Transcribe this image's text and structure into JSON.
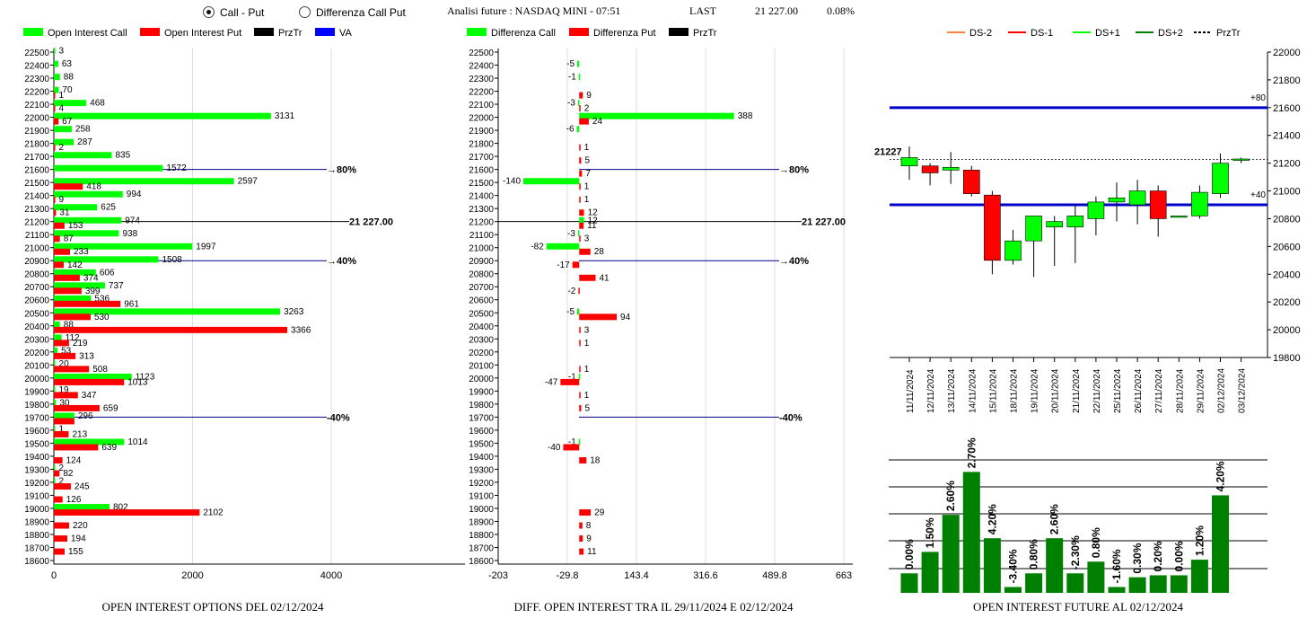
{
  "header": {
    "radio_call_put": "Call - Put",
    "radio_diff": "Differenza Call Put",
    "title": "Analisi future : NASDAQ MINI - 07:51",
    "last_label": "LAST",
    "last_value": "21 227.00",
    "change": "0.08%"
  },
  "colors": {
    "call": "#00ff00",
    "put": "#ff0000",
    "prztr": "#000000",
    "va": "#0000ff",
    "dark_green": "#008000"
  },
  "chart_data": [
    {
      "type": "bar",
      "title": "OPEN INTEREST OPTIONS DEL 02/12/2024",
      "legend": [
        "Open Interest Call",
        "Open Interest Put",
        "PrzTr",
        "VA"
      ],
      "xlim": [
        0,
        5800
      ],
      "xticks": [
        "0",
        "2000",
        "4000"
      ],
      "categories": [
        "22500",
        "22400",
        "22300",
        "22200",
        "22100",
        "22000",
        "21900",
        "21800",
        "21700",
        "21600",
        "21500",
        "21400",
        "21300",
        "21200",
        "21100",
        "21000",
        "20900",
        "20800",
        "20700",
        "20600",
        "20500",
        "20400",
        "20300",
        "20200",
        "20100",
        "20000",
        "19900",
        "19800",
        "19700",
        "19600",
        "19500",
        "19400",
        "19300",
        "19200",
        "19100",
        "19000",
        "18900",
        "18800",
        "18700",
        "18600"
      ],
      "series": [
        {
          "name": "Open Interest Call",
          "values": [
            3,
            63,
            88,
            70,
            468,
            3131,
            258,
            287,
            835,
            1572,
            2597,
            994,
            625,
            974,
            938,
            1997,
            1508,
            606,
            737,
            536,
            3263,
            88,
            112,
            53,
            20,
            1123,
            19,
            30,
            296,
            1,
            1014,
            null,
            2,
            2,
            null,
            802,
            null,
            null,
            null,
            null
          ],
          "labels": [
            "3",
            "63",
            "88",
            "70",
            "468",
            "3131",
            "258",
            "287",
            "835",
            "1572",
            "2597",
            "994",
            "625",
            "974",
            "938",
            "1997",
            "1508",
            "606",
            "737",
            "536",
            "3263",
            "88",
            "112",
            "53",
            "20",
            "1123",
            "19",
            "30",
            "296",
            "1",
            "1014",
            "",
            "2",
            "2",
            "",
            "802",
            "",
            "",
            "",
            ""
          ]
        },
        {
          "name": "Open Interest Put",
          "values": [
            null,
            null,
            null,
            1,
            4,
            67,
            null,
            2,
            null,
            null,
            418,
            9,
            31,
            153,
            87,
            233,
            142,
            374,
            399,
            961,
            530,
            3366,
            219,
            313,
            508,
            1013,
            347,
            659,
            296,
            213,
            639,
            124,
            82,
            245,
            126,
            2102,
            220,
            194,
            155,
            null
          ],
          "labels": [
            "",
            "",
            "",
            "1",
            "4",
            "67",
            "",
            "2",
            "",
            "",
            "418",
            "9",
            "31",
            "153",
            "87",
            "233",
            "142",
            "374",
            "399",
            "961",
            "530",
            "3366",
            "219",
            "313",
            "508",
            "1013",
            "347",
            "659",
            "",
            "213",
            "639",
            "124",
            "82",
            "245",
            "126",
            "2102",
            "220",
            "194",
            "155",
            ""
          ]
        }
      ],
      "refs": [
        {
          "strike": "21600",
          "label": "80%",
          "kind": "va"
        },
        {
          "strike": "21200",
          "label": "21 227.00",
          "kind": "prztr"
        },
        {
          "strike": "20900",
          "label": "40%",
          "kind": "va"
        },
        {
          "strike": "19700",
          "label": "-40%",
          "kind": "va"
        }
      ]
    },
    {
      "type": "bar",
      "title": "DIFF. OPEN INTEREST TRA IL 29/11/2024 E 02/12/2024",
      "legend": [
        "Differenza Call",
        "Differenza Put",
        "PrzTr"
      ],
      "xlim": [
        -203,
        663
      ],
      "xticks": [
        "-203",
        "-29.8",
        "143.4",
        "316.6",
        "489.8",
        "663"
      ],
      "categories": [
        "22500",
        "22400",
        "22300",
        "22200",
        "22100",
        "22000",
        "21900",
        "21800",
        "21700",
        "21600",
        "21500",
        "21400",
        "21300",
        "21200",
        "21100",
        "21000",
        "20900",
        "20800",
        "20700",
        "20600",
        "20500",
        "20400",
        "20300",
        "20200",
        "20100",
        "20000",
        "19900",
        "19800",
        "19700",
        "19600",
        "19500",
        "19400",
        "19300",
        "19200",
        "19100",
        "19000",
        "18900",
        "18800",
        "18700",
        "18600"
      ],
      "series": [
        {
          "name": "Differenza Call",
          "values": [
            null,
            -5,
            -1,
            null,
            -3,
            388,
            -6,
            null,
            null,
            null,
            -140,
            null,
            null,
            12,
            -3,
            -82,
            null,
            null,
            null,
            null,
            -5,
            null,
            null,
            null,
            null,
            -1,
            null,
            null,
            null,
            null,
            -1,
            null,
            null,
            null,
            null,
            null,
            null,
            null,
            null,
            null
          ],
          "labels": [
            "",
            "-5",
            "-1",
            "",
            "-3",
            "388",
            "-6",
            "",
            "",
            "",
            "-140",
            "",
            "",
            "12",
            "-3",
            "-82",
            "",
            "",
            "",
            "",
            "-5",
            "",
            "",
            "",
            "",
            "-1",
            "",
            "",
            "",
            "",
            "-1",
            "",
            "",
            "",
            "",
            "",
            "",
            "",
            "",
            ""
          ]
        },
        {
          "name": "Differenza Put",
          "values": [
            null,
            null,
            null,
            9,
            2,
            24,
            null,
            1,
            5,
            7,
            1,
            1,
            12,
            11,
            3,
            28,
            -17,
            41,
            -2,
            null,
            94,
            3,
            1,
            null,
            1,
            -47,
            1,
            5,
            null,
            null,
            -40,
            18,
            null,
            null,
            null,
            29,
            8,
            9,
            11,
            null
          ],
          "labels": [
            "",
            "",
            "",
            "9",
            "2",
            "24",
            "",
            "1",
            "5",
            "7",
            "1",
            "1",
            "12",
            "11",
            "3",
            "28",
            "-17",
            "41",
            "-2",
            "",
            "94",
            "3",
            "1",
            "",
            "1",
            "-47",
            "1",
            "5",
            "",
            "",
            "-40",
            "18",
            "",
            "",
            "",
            "29",
            "8",
            "9",
            "11",
            ""
          ]
        }
      ],
      "refs": [
        {
          "strike": "21600",
          "label": "80%",
          "kind": "va"
        },
        {
          "strike": "21200",
          "label": "21 227.00",
          "kind": "prztr"
        },
        {
          "strike": "20900",
          "label": "40%",
          "kind": "va"
        },
        {
          "strike": "19700",
          "label": "-40%",
          "kind": "va"
        }
      ]
    },
    {
      "type": "candlestick",
      "legend": [
        "DS-2",
        "DS-1",
        "DS+1",
        "DS+2",
        "PrzTr"
      ],
      "legend_colors": [
        "#ff8040",
        "#ff0000",
        "#00ff00",
        "#008000",
        "#000000"
      ],
      "ylim": [
        19800,
        22000
      ],
      "yticks": [
        "22000",
        "21800",
        "21600",
        "21400",
        "21200",
        "21000",
        "20800",
        "20600",
        "20400",
        "20200",
        "20000",
        "19800"
      ],
      "dates": [
        "11/11/2024",
        "12/11/2024",
        "13/11/2024",
        "14/11/2024",
        "15/11/2024",
        "18/11/2024",
        "19/11/2024",
        "20/11/2024",
        "21/11/2024",
        "22/11/2024",
        "25/11/2024",
        "26/11/2024",
        "27/11/2024",
        "28/11/2024",
        "29/11/2024",
        "02/12/2024",
        "03/12/2024"
      ],
      "open": [
        21180,
        21180,
        21150,
        21150,
        20970,
        20500,
        20640,
        20740,
        20740,
        20800,
        20920,
        20900,
        21000,
        20810,
        20820,
        20980,
        21220
      ],
      "high": [
        21320,
        21200,
        21280,
        21180,
        21000,
        20720,
        20820,
        20820,
        20900,
        20960,
        21060,
        21080,
        21040,
        20820,
        21040,
        21270,
        21240
      ],
      "low": [
        21080,
        21040,
        21050,
        20960,
        20400,
        20470,
        20380,
        20460,
        20480,
        20680,
        20780,
        20760,
        20670,
        20810,
        20800,
        20950,
        21200
      ],
      "close": [
        21240,
        21130,
        21170,
        20980,
        20500,
        20640,
        20820,
        20780,
        20820,
        20920,
        20950,
        21000,
        20800,
        20820,
        20990,
        21200,
        21230
      ],
      "ref_lines": [
        {
          "value": 21600,
          "label": "+80",
          "color": "#0000cc"
        },
        {
          "value": 20900,
          "label": "+40",
          "color": "#0000cc"
        },
        {
          "value": 21227,
          "label": "21227",
          "style": "dashed"
        }
      ]
    },
    {
      "type": "bar",
      "title": "OPEN INTEREST FUTURE AL 02/12/2024",
      "values": [
        1.0,
        2.1,
        4.0,
        6.2,
        2.8,
        0.3,
        1.0,
        2.8,
        1.0,
        1.6,
        0.3,
        0.8,
        0.9,
        0.9,
        1.7,
        5.0
      ],
      "labels": [
        "0.00%",
        "1.50%",
        "2.60%",
        "2.70%",
        "4.20%",
        "-3.40%",
        "0.80%",
        "2.60%",
        "-2.30%",
        "0.80%",
        "-1.60%",
        "0.30%",
        "0.20%",
        "0.00%",
        "1.20%",
        "4.20%"
      ],
      "ylim": [
        0,
        7
      ]
    }
  ]
}
